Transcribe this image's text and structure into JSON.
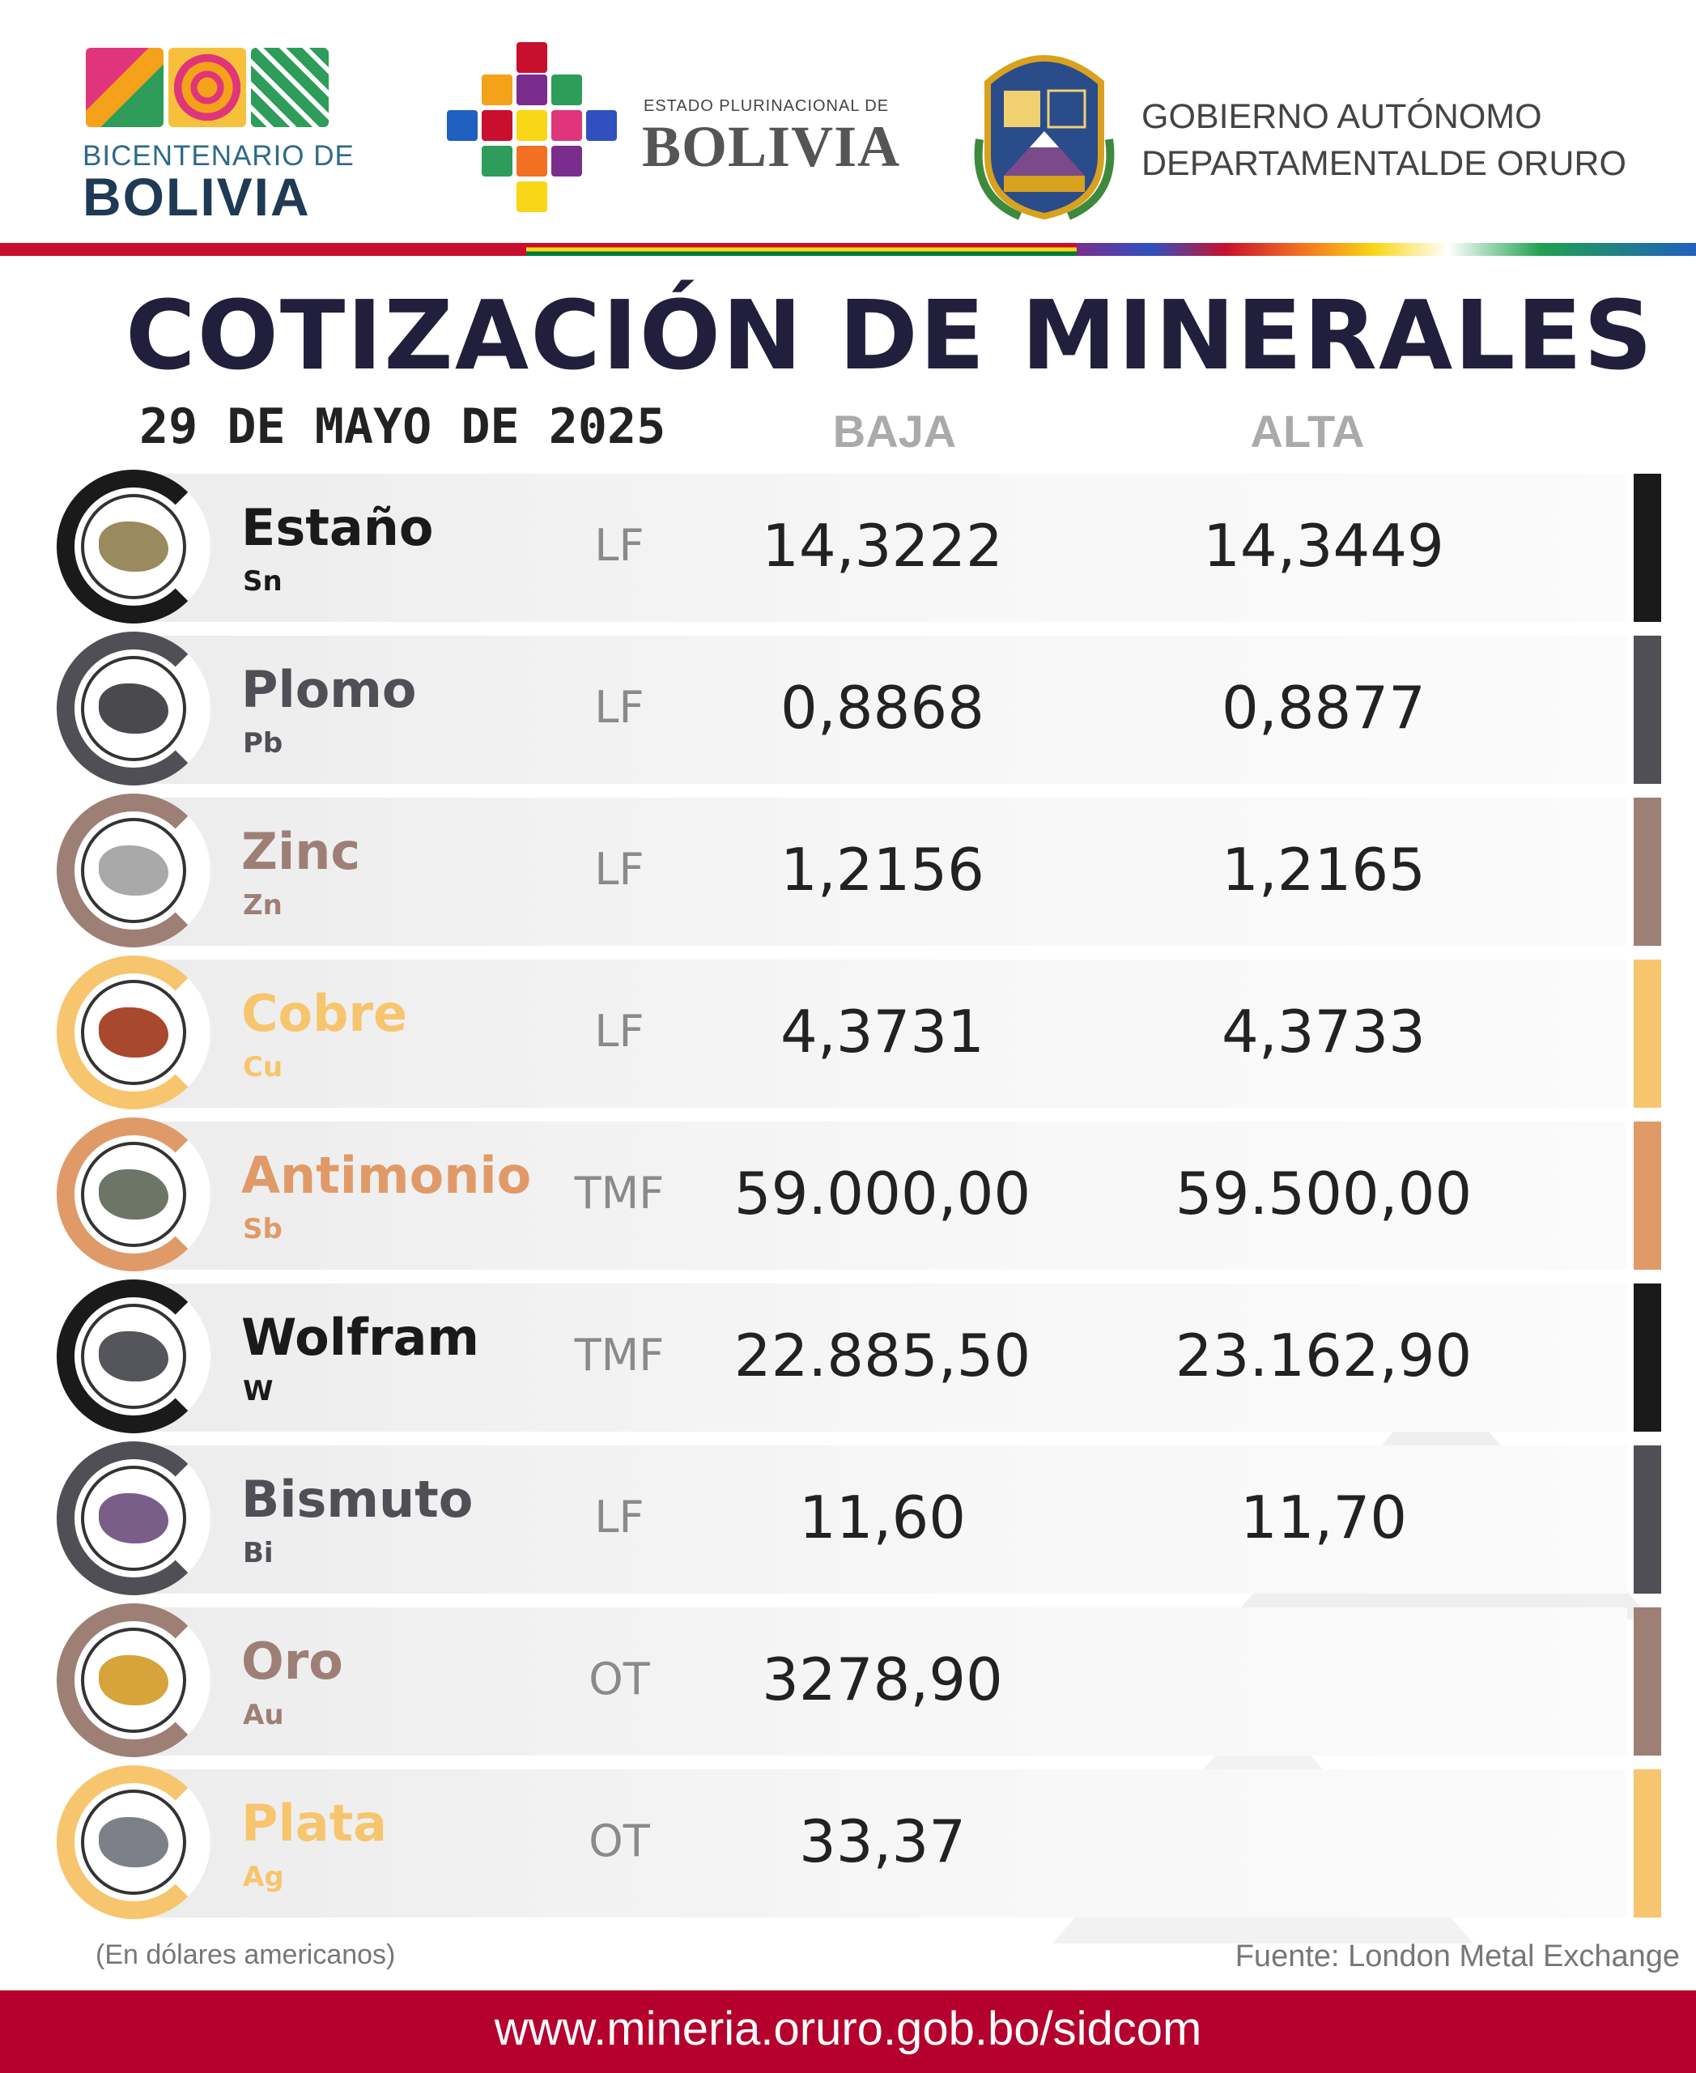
{
  "header": {
    "bicentenario_line1": "BICENTENARIO DE",
    "bicentenario_line2": "BOLIVIA",
    "estado_small": "ESTADO PLURINACIONAL DE",
    "estado_big": "BOLIVIA",
    "gobierno_line1": "GOBIERNO AUTÓNOMO",
    "gobierno_line2": "DEPARTAMENTALDE ORURO"
  },
  "title": "COTIZACIÓN DE MINERALES",
  "date": "29 DE MAYO DE 2025",
  "columns": {
    "baja": "BAJA",
    "alta": "ALTA"
  },
  "minerals": [
    {
      "name": "Estaño",
      "symbol": "Sn",
      "unit": "LF",
      "baja": "14,3222",
      "alta": "14,3449",
      "color": "#1a1a1a",
      "rock": "#9b8a5e"
    },
    {
      "name": "Plomo",
      "symbol": "Pb",
      "unit": "LF",
      "baja": "0,8868",
      "alta": "0,8877",
      "color": "#4f4f55",
      "rock": "#4a4a4e"
    },
    {
      "name": "Zinc",
      "symbol": "Zn",
      "unit": "LF",
      "baja": "1,2156",
      "alta": "1,2165",
      "color": "#9e7f76",
      "rock": "#a9a9a9"
    },
    {
      "name": "Cobre",
      "symbol": "Cu",
      "unit": "LF",
      "baja": "4,3731",
      "alta": "4,3733",
      "color": "#f7c56d",
      "rock": "#a8482c"
    },
    {
      "name": "Antimonio",
      "symbol": "Sb",
      "unit": "TMF",
      "baja": "59.000,00",
      "alta": "59.500,00",
      "color": "#e09a68",
      "rock": "#6d7566"
    },
    {
      "name": "Wolfram",
      "symbol": "W",
      "unit": "TMF",
      "baja": "22.885,50",
      "alta": "23.162,90",
      "color": "#1a1a1a",
      "rock": "#55555c"
    },
    {
      "name": "Bismuto",
      "symbol": "Bi",
      "unit": "LF",
      "baja": "11,60",
      "alta": "11,70",
      "color": "#4f4f55",
      "rock": "#7a5e8a"
    },
    {
      "name": "Oro",
      "symbol": "Au",
      "unit": "OT",
      "baja": "3278,90",
      "alta": "",
      "color": "#9e7f76",
      "rock": "#d6a43a"
    },
    {
      "name": "Plata",
      "symbol": "Ag",
      "unit": "OT",
      "baja": "33,37",
      "alta": "",
      "color": "#f7c56d",
      "rock": "#7d8088"
    }
  ],
  "footer": {
    "note": "(En dólares americanos)",
    "source": "Fuente: London Metal Exchange",
    "url": "www.mineria.oruro.gob.bo/sidcom"
  }
}
